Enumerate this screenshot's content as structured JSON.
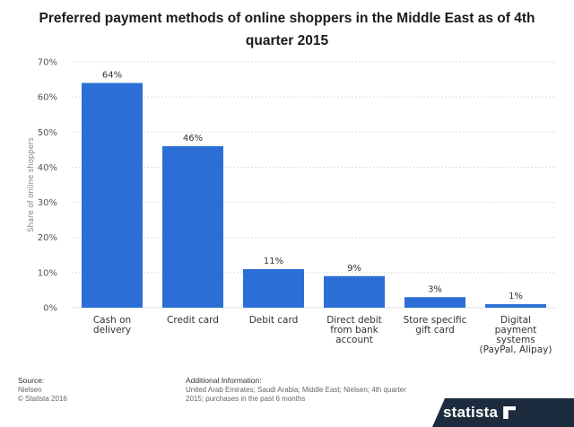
{
  "chart_data": {
    "type": "bar",
    "title": "Preferred payment methods of online shoppers in the Middle East as of 4th quarter 2015",
    "ylabel": "Share of online shoppers",
    "xlabel": "",
    "ylim": [
      0,
      70
    ],
    "yticks": [
      "0%",
      "10%",
      "20%",
      "30%",
      "40%",
      "50%",
      "60%",
      "70%"
    ],
    "grid": true,
    "categories": [
      [
        "Cash on",
        "delivery"
      ],
      [
        "Credit card"
      ],
      [
        "Debit card"
      ],
      [
        "Direct debit",
        "from bank",
        "account"
      ],
      [
        "Store specific",
        "gift card"
      ],
      [
        "Digital",
        "payment",
        "systems",
        "(PayPal, Alipay)"
      ]
    ],
    "values": [
      64,
      46,
      11,
      9,
      3,
      1
    ],
    "data_labels": [
      "64%",
      "46%",
      "11%",
      "9%",
      "3%",
      "1%"
    ],
    "bar_color": "#2b6fd6"
  },
  "footer": {
    "source_heading": "Source:",
    "source_lines": [
      "Nielsen",
      "© Statista 2016"
    ],
    "info_heading": "Additional Information:",
    "info_lines": [
      "United Arab Emirates; Saudi Arabia; Middle East; Nielsen; 4th quarter",
      "2015; purchases in the past 6 months"
    ]
  },
  "brand": {
    "name": "statista",
    "icon": "statista-logo-icon"
  }
}
